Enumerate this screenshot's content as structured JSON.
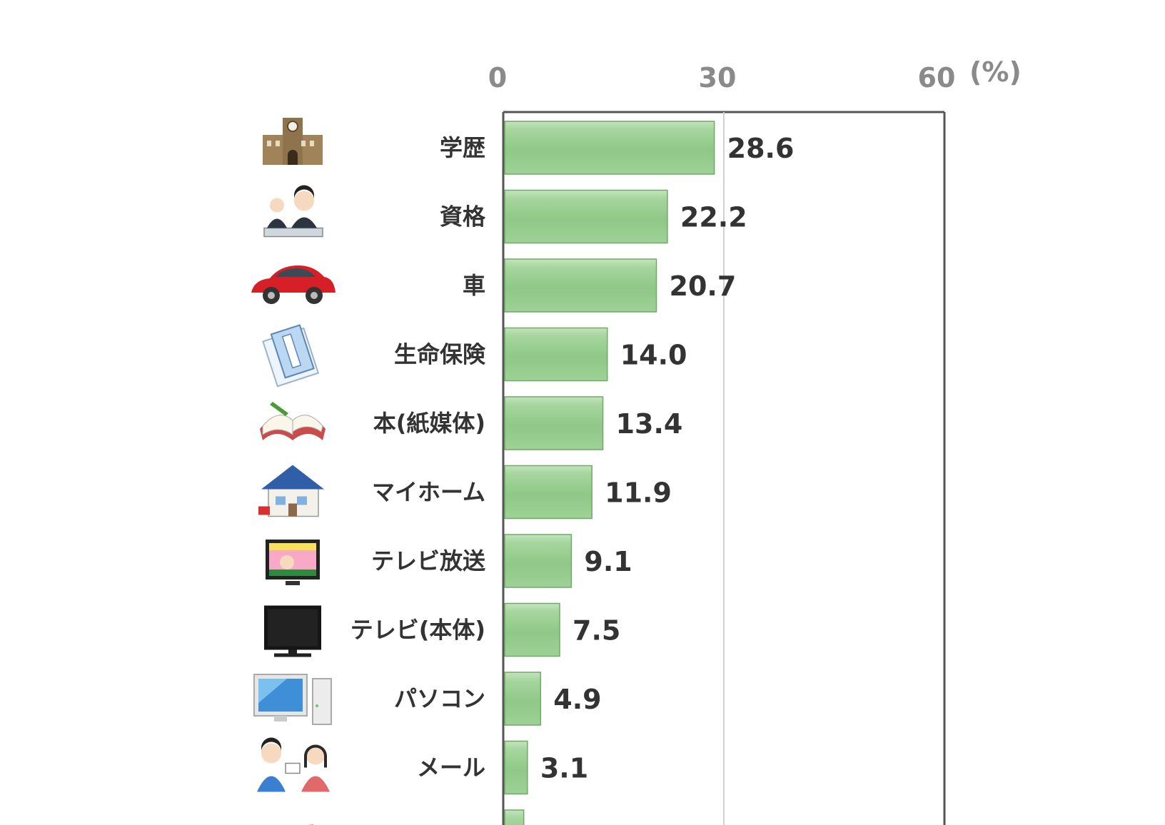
{
  "chart_data": {
    "type": "bar",
    "orientation": "horizontal",
    "unit_label": "(%)",
    "xlim": [
      0,
      60
    ],
    "x_ticks": [
      "0",
      "30",
      "60"
    ],
    "grid": true,
    "categories": [
      "学歴",
      "資格",
      "車",
      "生命保険",
      "本(紙媒体)",
      "マイホーム",
      "テレビ放送",
      "テレビ(本体)",
      "パソコン",
      "メール",
      ""
    ],
    "values": [
      28.6,
      22.2,
      20.7,
      14.0,
      13.4,
      11.9,
      9.1,
      7.5,
      4.9,
      3.1,
      2.6
    ],
    "value_labels": [
      "28.6",
      "22.2",
      "20.7",
      "14.0",
      "13.4",
      "11.9",
      "9.1",
      "7.5",
      "4.9",
      "3.1",
      ""
    ],
    "icons": [
      "university-icon",
      "exam-icon",
      "car-icon",
      "insurance-document-icon",
      "book-icon",
      "house-icon",
      "tv-broadcast-icon",
      "tv-icon",
      "computer-icon",
      "email-people-icon",
      "money-icon"
    ],
    "bar_color": "#8fc887",
    "bar_border": "#6faa66"
  }
}
